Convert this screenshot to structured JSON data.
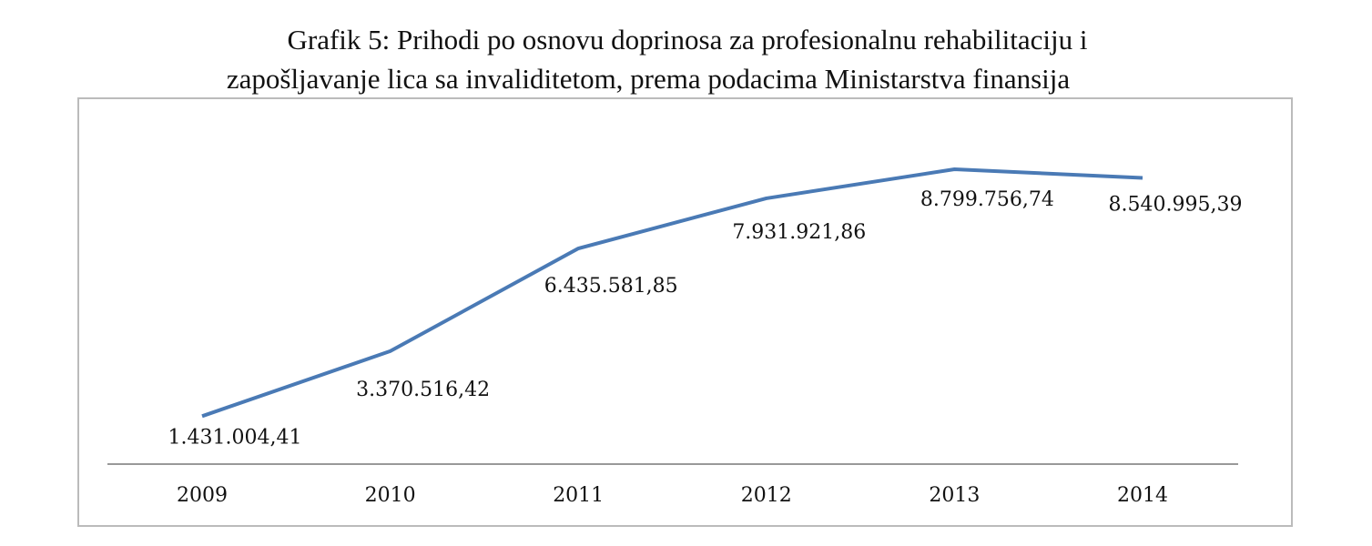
{
  "chart_data": {
    "type": "line",
    "title": [
      "Grafik 5: Prihodi po osnovu doprinosa za profesionalnu rehabilitaciju i",
      "zapošljavanje lica sa invaliditetom, prema podacima Ministarstva finansija"
    ],
    "categories": [
      "2009",
      "2010",
      "2011",
      "2012",
      "2013",
      "2014"
    ],
    "values": [
      1431004.41,
      3370516.42,
      6435581.85,
      7931921.86,
      8799756.74,
      8540995.39
    ],
    "value_labels": [
      "1.431.004,41",
      "3.370.516,42",
      "6.435.581,85",
      "7.931.921,86",
      "8.799.756,74",
      "8.540.995,39"
    ],
    "color": "#4a7ab5"
  }
}
